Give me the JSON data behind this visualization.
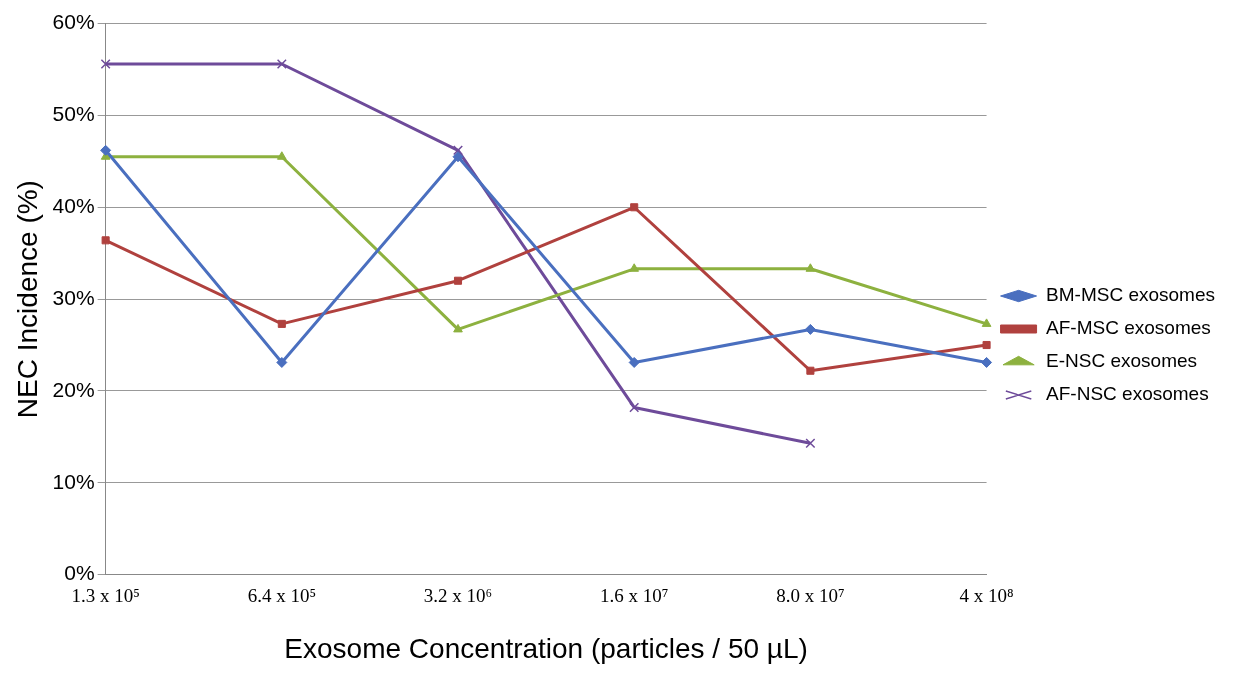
{
  "chart_data": {
    "type": "line",
    "xlabel": "Exosome Concentration (particles / 50 µL)",
    "ylabel": "NEC Incidence (%)",
    "categories": [
      "1.3 x 10⁵",
      "6.4 x 10⁵",
      "3.2 x 10⁶",
      "1.6 x 10⁷",
      "8.0 x 10⁷",
      "4 x 10⁸"
    ],
    "ylim": [
      0,
      60
    ],
    "yticks": [
      {
        "value": 0,
        "label": "0%"
      },
      {
        "value": 10,
        "label": "10%"
      },
      {
        "value": 20,
        "label": "20%"
      },
      {
        "value": 30,
        "label": "30%"
      },
      {
        "value": 40,
        "label": "40%"
      },
      {
        "value": 50,
        "label": "50%"
      },
      {
        "value": 60,
        "label": "60%"
      }
    ],
    "grid": "y",
    "legend": "right",
    "line_style": "solid",
    "series": [
      {
        "name": "BM-MSC exosomes",
        "color": "#4a6fbf",
        "marker": "diamond",
        "values": [
          46.2,
          23.1,
          45.5,
          23.1,
          26.7,
          23.1
        ]
      },
      {
        "name": "AF-MSC exosomes",
        "color": "#b0413e",
        "marker": "square",
        "values": [
          36.4,
          27.3,
          32.0,
          40.0,
          22.2,
          25.0
        ]
      },
      {
        "name": "E-NSC exosomes",
        "color": "#8db13f",
        "marker": "triangle",
        "values": [
          45.5,
          45.5,
          26.7,
          33.3,
          33.3,
          27.3
        ]
      },
      {
        "name": "AF-NSC exosomes",
        "color": "#6e4b9a",
        "marker": "cross",
        "values": [
          55.6,
          55.6,
          46.2,
          18.2,
          14.3,
          null
        ]
      }
    ]
  }
}
